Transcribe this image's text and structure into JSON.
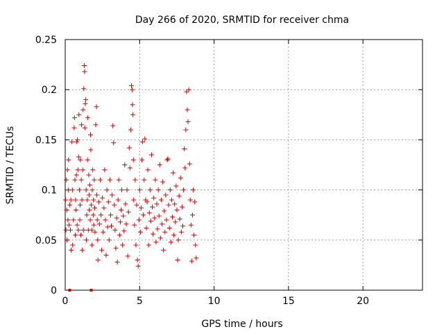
{
  "chart_data": {
    "type": "scatter",
    "title": "Day 266 of 2020, SRMTID for receiver chma",
    "xlabel": "GPS time / hours",
    "ylabel": "SRMTID / TECUs",
    "xlim": [
      0,
      24
    ],
    "ylim": [
      0,
      0.25
    ],
    "xticks": [
      0,
      5,
      10,
      15,
      20
    ],
    "yticks": [
      0,
      0.05,
      0.1,
      0.15,
      0.2,
      0.25
    ],
    "xtick_labels": [
      "0",
      "5",
      "10",
      "15",
      "20"
    ],
    "ytick_labels": [
      "0",
      "0.05",
      "0.1",
      "0.15",
      "0.2",
      "0.25"
    ],
    "grid": true,
    "marker": "+",
    "color": "#d40000",
    "series": [
      {
        "values": [
          [
            0.02,
            0.09
          ],
          [
            0.05,
            0.06
          ],
          [
            0.08,
            0.11
          ],
          [
            0.1,
            0.08
          ],
          [
            0.12,
            0.05
          ],
          [
            0.15,
            0.12
          ],
          [
            0.18,
            0.07
          ],
          [
            0.2,
            0.1
          ],
          [
            0.22,
            0.13
          ],
          [
            0.25,
            0.065
          ],
          [
            0.3,
            0.085
          ],
          [
            0.35,
            0.06
          ],
          [
            0.38,
            0.09
          ],
          [
            0.4,
            0.04
          ],
          [
            0.45,
            0.148
          ],
          [
            0.48,
            0.1
          ],
          [
            0.5,
            0.045
          ],
          [
            0.55,
            0.07
          ],
          [
            0.6,
            0.162
          ],
          [
            0.62,
            0.172
          ],
          [
            0.65,
            0.11
          ],
          [
            0.68,
            0.055
          ],
          [
            0.7,
            0.09
          ],
          [
            0.72,
            0.08
          ],
          [
            0.75,
            0.115
          ],
          [
            0.78,
            0.148
          ],
          [
            0.8,
            0.065
          ],
          [
            0.82,
            0.15
          ],
          [
            0.85,
            0.12
          ],
          [
            0.88,
            0.06
          ],
          [
            0.9,
            0.133
          ],
          [
            0.92,
            0.175
          ],
          [
            0.95,
            0.1
          ],
          [
            0.98,
            0.07
          ],
          [
            1.0,
            0.085
          ],
          [
            1.02,
            0.13
          ],
          [
            1.05,
            0.055
          ],
          [
            1.08,
            0.11
          ],
          [
            1.1,
            0.165
          ],
          [
            1.12,
            0.09
          ],
          [
            1.15,
            0.04
          ],
          [
            1.18,
            0.12
          ],
          [
            1.2,
            0.18
          ],
          [
            1.22,
            0.06
          ],
          [
            1.25,
            0.201
          ],
          [
            1.28,
            0.224
          ],
          [
            1.3,
            0.218
          ],
          [
            1.32,
            0.162
          ],
          [
            1.35,
            0.186
          ],
          [
            1.38,
            0.19
          ],
          [
            1.4,
            0.1
          ],
          [
            1.42,
            0.05
          ],
          [
            1.45,
            0.075
          ],
          [
            1.48,
            0.09
          ],
          [
            1.5,
            0.13
          ],
          [
            1.52,
            0.172
          ],
          [
            1.55,
            0.06
          ],
          [
            1.58,
            0.115
          ],
          [
            1.6,
            0.095
          ],
          [
            1.62,
            0.08
          ],
          [
            1.65,
            0.105
          ],
          [
            1.68,
            0.07
          ],
          [
            1.7,
            0.155
          ],
          [
            1.72,
            0.14
          ],
          [
            1.75,
            0.085
          ],
          [
            1.78,
            0.06
          ],
          [
            1.8,
            0.045
          ],
          [
            1.82,
            0.1
          ],
          [
            1.85,
            0.12
          ],
          [
            1.88,
            0.075
          ],
          [
            1.9,
            0.09
          ],
          [
            1.92,
            0.065
          ],
          [
            1.95,
            0.11
          ],
          [
            1.98,
            0.082
          ],
          [
            2.0,
            0.058
          ],
          [
            2.05,
            0.165
          ],
          [
            2.1,
            0.183
          ],
          [
            2.12,
            0.095
          ],
          [
            2.15,
            0.07
          ],
          [
            2.18,
            0.05
          ],
          [
            2.2,
            0.03
          ],
          [
            2.25,
            0.088
          ],
          [
            2.3,
            0.066
          ],
          [
            2.35,
            0.11
          ],
          [
            2.4,
            0.075
          ],
          [
            2.45,
            0.04
          ],
          [
            2.5,
            0.092
          ],
          [
            2.55,
            0.058
          ],
          [
            2.6,
            0.082
          ],
          [
            2.65,
            0.12
          ],
          [
            2.7,
            0.07
          ],
          [
            2.75,
            0.035
          ],
          [
            2.8,
            0.1
          ],
          [
            2.85,
            0.063
          ],
          [
            2.9,
            0.088
          ],
          [
            2.95,
            0.05
          ],
          [
            3.0,
            0.11
          ],
          [
            3.05,
            0.075
          ],
          [
            3.1,
            0.064
          ],
          [
            3.15,
            0.095
          ],
          [
            3.2,
            0.164
          ],
          [
            3.25,
            0.147
          ],
          [
            3.3,
            0.085
          ],
          [
            3.35,
            0.06
          ],
          [
            3.4,
            0.042
          ],
          [
            3.45,
            0.072
          ],
          [
            3.5,
            0.028
          ],
          [
            3.55,
            0.09
          ],
          [
            3.6,
            0.11
          ],
          [
            3.65,
            0.055
          ],
          [
            3.7,
            0.068
          ],
          [
            3.75,
            0.08
          ],
          [
            3.8,
            0.1
          ],
          [
            3.85,
            0.045
          ],
          [
            3.9,
            0.074
          ],
          [
            3.95,
            0.059
          ],
          [
            4.0,
            0.125
          ],
          [
            4.05,
            0.086
          ],
          [
            4.1,
            0.066
          ],
          [
            4.15,
            0.1
          ],
          [
            4.2,
            0.034
          ],
          [
            4.25,
            0.078
          ],
          [
            4.3,
            0.142
          ],
          [
            4.35,
            0.122
          ],
          [
            4.4,
            0.16
          ],
          [
            4.45,
            0.204
          ],
          [
            4.5,
            0.2
          ],
          [
            4.52,
            0.185
          ],
          [
            4.55,
            0.175
          ],
          [
            4.58,
            0.13
          ],
          [
            4.6,
            0.09
          ],
          [
            4.65,
            0.065
          ],
          [
            4.7,
            0.11
          ],
          [
            4.75,
            0.045
          ],
          [
            4.8,
            0.085
          ],
          [
            4.85,
            0.03
          ],
          [
            4.9,
            0.024
          ],
          [
            4.95,
            0.07
          ],
          [
            5.0,
            0.1
          ],
          [
            5.05,
            0.058
          ],
          [
            5.1,
            0.082
          ],
          [
            5.15,
            0.13
          ],
          [
            5.2,
            0.148
          ],
          [
            5.25,
            0.075
          ],
          [
            5.3,
            0.11
          ],
          [
            5.35,
            0.151
          ],
          [
            5.4,
            0.09
          ],
          [
            5.45,
            0.062
          ],
          [
            5.5,
            0.088
          ],
          [
            5.55,
            0.12
          ],
          [
            5.6,
            0.045
          ],
          [
            5.65,
            0.077
          ],
          [
            5.7,
            0.1
          ],
          [
            5.75,
            0.069
          ],
          [
            5.8,
            0.135
          ],
          [
            5.85,
            0.083
          ],
          [
            5.9,
            0.056
          ],
          [
            5.95,
            0.092
          ],
          [
            6.0,
            0.072
          ],
          [
            6.05,
            0.11
          ],
          [
            6.1,
            0.048
          ],
          [
            6.15,
            0.086
          ],
          [
            6.2,
            0.061
          ],
          [
            6.25,
            0.1
          ],
          [
            6.3,
            0.074
          ],
          [
            6.35,
            0.125
          ],
          [
            6.4,
            0.052
          ],
          [
            6.45,
            0.09
          ],
          [
            6.5,
            0.066
          ],
          [
            6.55,
            0.108
          ],
          [
            6.6,
            0.04
          ],
          [
            6.65,
            0.079
          ],
          [
            6.7,
            0.058
          ],
          [
            6.75,
            0.095
          ],
          [
            6.8,
            0.07
          ],
          [
            6.85,
            0.13
          ],
          [
            6.9,
            0.131
          ],
          [
            6.95,
            0.085
          ],
          [
            7.0,
            0.062
          ],
          [
            7.05,
            0.1
          ],
          [
            7.1,
            0.048
          ],
          [
            7.15,
            0.09
          ],
          [
            7.2,
            0.073
          ],
          [
            7.25,
            0.117
          ],
          [
            7.3,
            0.055
          ],
          [
            7.35,
            0.086
          ],
          [
            7.4,
            0.068
          ],
          [
            7.45,
            0.104
          ],
          [
            7.5,
            0.08
          ],
          [
            7.55,
            0.03
          ],
          [
            7.6,
            0.05
          ],
          [
            7.65,
            0.094
          ],
          [
            7.7,
            0.071
          ],
          [
            7.75,
            0.112
          ],
          [
            7.8,
            0.058
          ],
          [
            7.85,
            0.083
          ],
          [
            7.9,
            0.064
          ],
          [
            7.95,
            0.1
          ],
          [
            8.0,
            0.141
          ],
          [
            8.05,
            0.122
          ],
          [
            8.1,
            0.16
          ],
          [
            8.15,
            0.198
          ],
          [
            8.2,
            0.18
          ],
          [
            8.25,
            0.168
          ],
          [
            8.3,
            0.2
          ],
          [
            8.35,
            0.126
          ],
          [
            8.4,
            0.09
          ],
          [
            8.45,
            0.065
          ],
          [
            8.5,
            0.029
          ],
          [
            8.55,
            0.075
          ],
          [
            8.6,
            0.1
          ],
          [
            8.65,
            0.055
          ],
          [
            8.7,
            0.088
          ],
          [
            8.75,
            0.045
          ],
          [
            8.8,
            0.032
          ]
        ]
      }
    ],
    "axis_marks": [
      0.3,
      1.75
    ]
  }
}
